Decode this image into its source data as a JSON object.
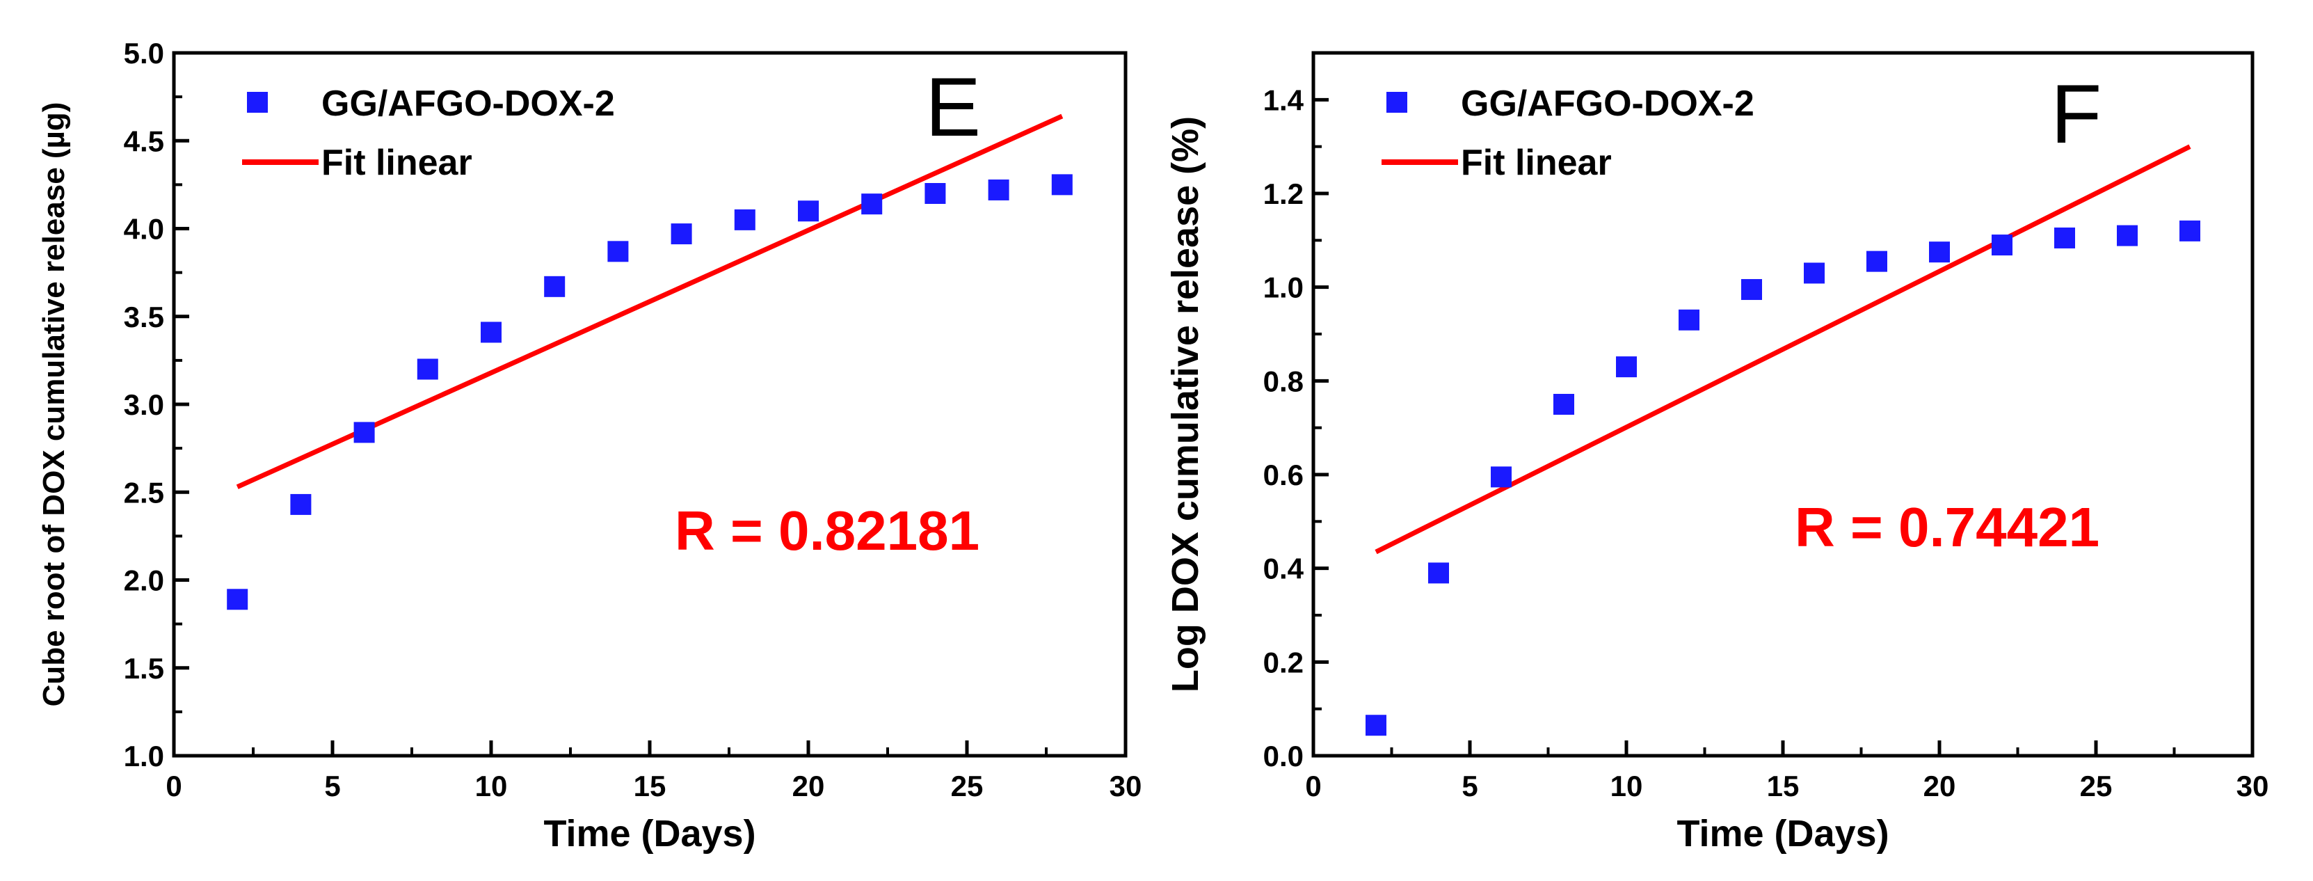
{
  "colors": {
    "points": "#1a1aff",
    "fit": "#ff0000",
    "annotation": "#ff0000",
    "axis": "#000000"
  },
  "chart_data": [
    {
      "type": "scatter",
      "panel_label": "E",
      "xlabel": "Time (Days)",
      "ylabel": "Cube root of DOX cumulative release (µg)",
      "xlim": [
        0,
        30
      ],
      "ylim": [
        1.0,
        5.0
      ],
      "xticks": [
        0,
        5,
        10,
        15,
        20,
        25,
        30
      ],
      "xtick_labels": [
        "0",
        "5",
        "10",
        "15",
        "20",
        "25",
        "30"
      ],
      "yticks": [
        1.0,
        1.5,
        2.0,
        2.5,
        3.0,
        3.5,
        4.0,
        4.5,
        5.0
      ],
      "ytick_labels": [
        "1.0",
        "1.5",
        "2.0",
        "2.5",
        "3.0",
        "3.5",
        "4.0",
        "4.5",
        "5.0"
      ],
      "legend_position": "top-left",
      "series": [
        {
          "name": "GG/AFGO-DOX-2",
          "kind": "scatter",
          "x": [
            2,
            4,
            6,
            8,
            10,
            12,
            14,
            16,
            18,
            20,
            22,
            24,
            26,
            28
          ],
          "y": [
            1.89,
            2.43,
            2.84,
            3.2,
            3.41,
            3.67,
            3.87,
            3.97,
            4.05,
            4.1,
            4.14,
            4.2,
            4.22,
            4.25
          ]
        },
        {
          "name": "Fit linear",
          "kind": "line",
          "x": [
            2,
            28
          ],
          "y": [
            2.53,
            4.64
          ]
        }
      ],
      "annotation": "R = 0.82181"
    },
    {
      "type": "scatter",
      "panel_label": "F",
      "xlabel": "Time (Days)",
      "ylabel": "Log DOX cumulative release (%)",
      "xlim": [
        0,
        30
      ],
      "ylim": [
        0.0,
        1.5
      ],
      "xticks": [
        0,
        5,
        10,
        15,
        20,
        25,
        30
      ],
      "xtick_labels": [
        "0",
        "5",
        "10",
        "15",
        "20",
        "25",
        "30"
      ],
      "yticks": [
        0.0,
        0.2,
        0.4,
        0.6,
        0.8,
        1.0,
        1.2,
        1.4
      ],
      "ytick_labels": [
        "0.0",
        "0.2",
        "0.4",
        "0.6",
        "0.8",
        "1.0",
        "1.2",
        "1.4"
      ],
      "legend_position": "top-left",
      "series": [
        {
          "name": "GG/AFGO-DOX-2",
          "kind": "scatter",
          "x": [
            2,
            4,
            6,
            8,
            10,
            12,
            14,
            16,
            18,
            20,
            22,
            24,
            26,
            28
          ],
          "y": [
            0.065,
            0.39,
            0.595,
            0.75,
            0.83,
            0.93,
            0.995,
            1.03,
            1.055,
            1.075,
            1.09,
            1.105,
            1.11,
            1.12
          ]
        },
        {
          "name": "Fit linear",
          "kind": "line",
          "x": [
            2,
            28
          ],
          "y": [
            0.435,
            1.3
          ]
        }
      ],
      "annotation": "R = 0.74421"
    }
  ]
}
